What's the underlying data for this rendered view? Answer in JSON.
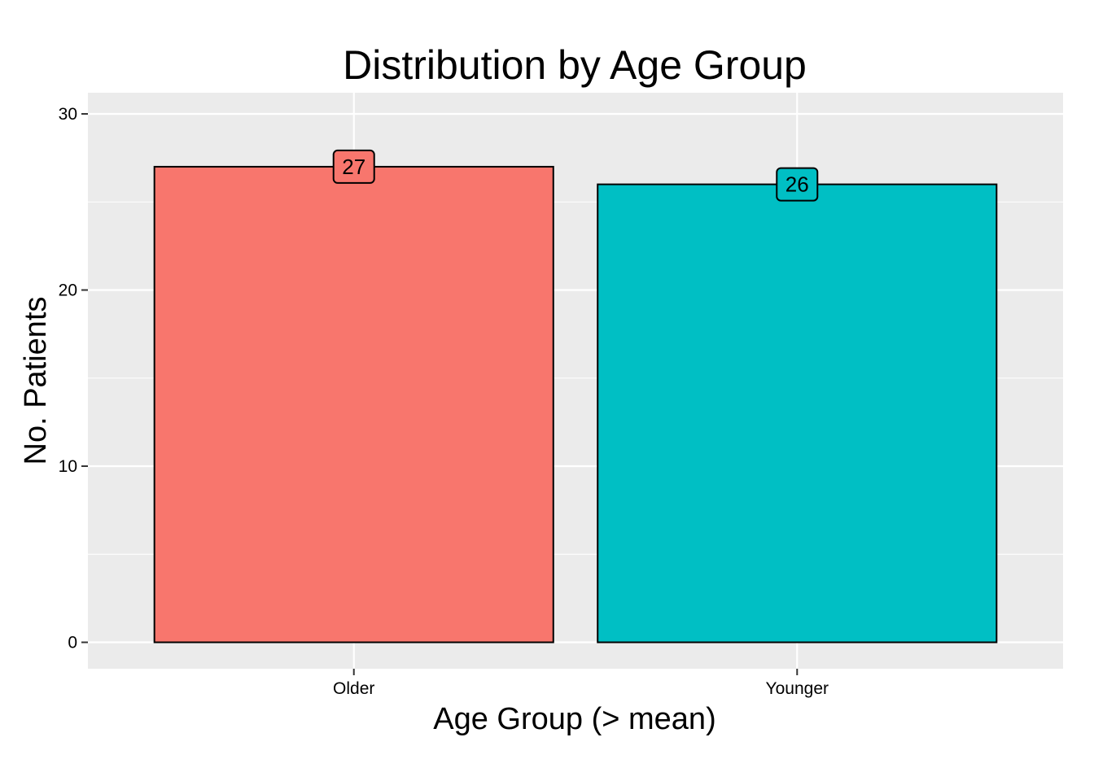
{
  "chart_data": {
    "type": "bar",
    "title": "Distribution by Age Group",
    "xlabel": "Age Group (> mean)",
    "ylabel": "No. Patients",
    "categories": [
      "Older",
      "Younger"
    ],
    "values": [
      27,
      26
    ],
    "data_labels": [
      "27",
      "26"
    ],
    "colors": [
      "#F8766D",
      "#00BFC4"
    ],
    "yticks": [
      0,
      10,
      20,
      30
    ],
    "ytick_labels": [
      "0",
      "10",
      "20",
      "30"
    ],
    "ylim": [
      -1.5,
      31.2
    ],
    "grid": true,
    "legend": "none",
    "panel_background": "#EBEBEB",
    "gridline_color": "#FFFFFF",
    "bar_outline_color": "#000000"
  }
}
